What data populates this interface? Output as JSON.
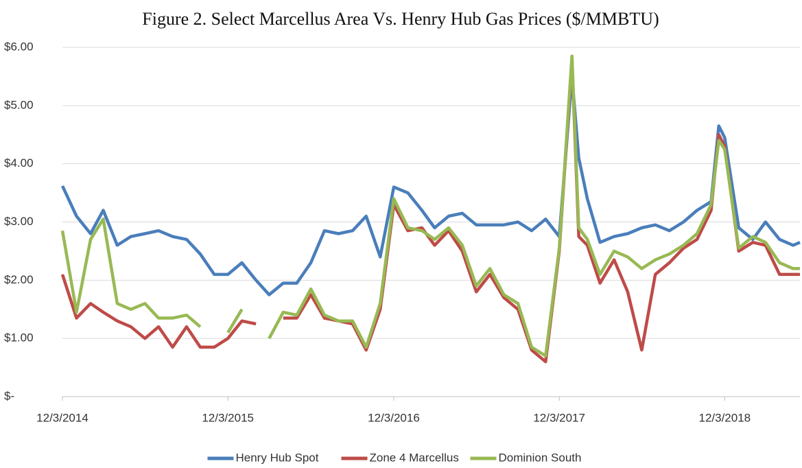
{
  "chart_data": {
    "type": "line",
    "title": "Figure 2. Select Marcellus Area Vs. Henry Hub Gas Prices ($/MMBTU)",
    "x": [
      "2014-12-03",
      "2015-01-03",
      "2015-02-03",
      "2015-03-03",
      "2015-04-03",
      "2015-05-03",
      "2015-06-03",
      "2015-07-03",
      "2015-08-03",
      "2015-09-03",
      "2015-10-03",
      "2015-11-03",
      "2015-12-03",
      "2016-01-03",
      "2016-02-03",
      "2016-03-03",
      "2016-04-03",
      "2016-05-03",
      "2016-06-03",
      "2016-07-03",
      "2016-08-03",
      "2016-09-03",
      "2016-10-03",
      "2016-11-03",
      "2016-12-03",
      "2017-01-03",
      "2017-02-03",
      "2017-03-03",
      "2017-04-03",
      "2017-05-03",
      "2017-06-03",
      "2017-07-03",
      "2017-08-03",
      "2017-09-03",
      "2017-10-03",
      "2017-11-03",
      "2017-12-03",
      "2017-12-31",
      "2018-01-15",
      "2018-02-03",
      "2018-03-03",
      "2018-04-03",
      "2018-05-03",
      "2018-06-03",
      "2018-07-03",
      "2018-08-03",
      "2018-09-03",
      "2018-10-03",
      "2018-11-03",
      "2018-11-20",
      "2018-12-03",
      "2019-01-03",
      "2019-02-03",
      "2019-03-03",
      "2019-04-03",
      "2019-05-03",
      "2019-05-18"
    ],
    "series": [
      {
        "name": "Henry Hub Spot",
        "color": "#4a7ebb",
        "values": [
          3.62,
          3.1,
          2.8,
          3.2,
          2.6,
          2.75,
          2.8,
          2.85,
          2.75,
          2.7,
          2.45,
          2.1,
          2.1,
          2.3,
          2.0,
          1.75,
          1.95,
          1.95,
          2.3,
          2.85,
          2.8,
          2.85,
          3.1,
          2.4,
          3.6,
          3.5,
          3.2,
          2.9,
          3.1,
          3.15,
          2.95,
          2.95,
          2.95,
          3.0,
          2.85,
          3.05,
          2.75,
          5.5,
          4.1,
          3.4,
          2.65,
          2.75,
          2.8,
          2.9,
          2.95,
          2.85,
          3.0,
          3.2,
          3.35,
          4.65,
          4.45,
          2.9,
          2.7,
          3.0,
          2.7,
          2.6,
          2.65
        ]
      },
      {
        "name": "Zone 4 Marcellus",
        "color": "#be4b48",
        "values": [
          2.1,
          1.35,
          1.6,
          1.45,
          1.3,
          1.2,
          1.0,
          1.2,
          0.85,
          1.2,
          0.85,
          0.85,
          1.0,
          1.3,
          1.25,
          null,
          1.35,
          1.35,
          1.75,
          1.35,
          1.3,
          1.25,
          0.8,
          1.5,
          3.3,
          2.85,
          2.9,
          2.6,
          2.85,
          2.5,
          1.8,
          2.1,
          1.7,
          1.5,
          0.8,
          0.6,
          2.5,
          5.8,
          2.75,
          2.6,
          1.95,
          2.35,
          1.8,
          0.8,
          2.1,
          2.3,
          2.55,
          2.7,
          3.2,
          4.5,
          4.3,
          2.5,
          2.65,
          2.6,
          2.1,
          2.1,
          2.1
        ]
      },
      {
        "name": "Dominion South",
        "color": "#98b954",
        "values": [
          2.85,
          1.45,
          2.7,
          3.05,
          1.6,
          1.5,
          1.6,
          1.35,
          1.35,
          1.4,
          1.2,
          null,
          1.1,
          1.5,
          null,
          1.0,
          1.45,
          1.4,
          1.85,
          1.4,
          1.3,
          1.3,
          0.85,
          1.6,
          3.4,
          2.9,
          2.85,
          2.7,
          2.9,
          2.6,
          1.9,
          2.2,
          1.75,
          1.6,
          0.85,
          0.7,
          2.55,
          5.85,
          2.9,
          2.7,
          2.1,
          2.5,
          2.4,
          2.2,
          2.35,
          2.45,
          2.6,
          2.8,
          3.3,
          4.4,
          4.25,
          2.55,
          2.75,
          2.65,
          2.3,
          2.2,
          2.2
        ]
      }
    ],
    "xlim": [
      "2014-12-03",
      "2019-05-18"
    ],
    "xticks": [
      {
        "value": "2014-12-03",
        "label": "12/3/2014"
      },
      {
        "value": "2015-12-03",
        "label": "12/3/2015"
      },
      {
        "value": "2016-12-03",
        "label": "12/3/2016"
      },
      {
        "value": "2017-12-03",
        "label": "12/3/2017"
      },
      {
        "value": "2018-12-03",
        "label": "12/3/2018"
      }
    ],
    "ylim": [
      0,
      6
    ],
    "yticks": [
      {
        "value": 0,
        "label": "$-"
      },
      {
        "value": 1,
        "label": "$1.00"
      },
      {
        "value": 2,
        "label": "$2.00"
      },
      {
        "value": 3,
        "label": "$3.00"
      },
      {
        "value": 4,
        "label": "$4.00"
      },
      {
        "value": 5,
        "label": "$5.00"
      },
      {
        "value": 6,
        "label": "$6.00"
      }
    ],
    "grid": true,
    "legend": "bottom"
  }
}
